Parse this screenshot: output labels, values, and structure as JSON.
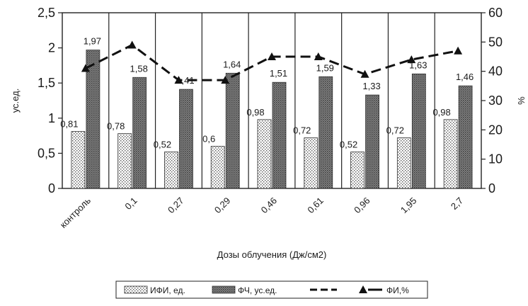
{
  "chart_data": {
    "type": "bar",
    "categories": [
      "контроль",
      "0,1",
      "0,27",
      "0,29",
      "0,46",
      "0,61",
      "0,96",
      "1,95",
      "2,7"
    ],
    "series": [
      {
        "name": "ИФИ, ед.",
        "type": "bar",
        "axis": "left",
        "pattern": "dotted",
        "values": [
          0.81,
          0.78,
          0.52,
          0.6,
          0.98,
          0.72,
          0.52,
          0.72,
          0.98
        ],
        "labels": [
          "0,81",
          "0,78",
          "0,52",
          "0,6",
          "0,98",
          "0,72",
          "0,52",
          "0,72",
          "0,98"
        ]
      },
      {
        "name": "ФЧ, ус.ед.",
        "type": "bar",
        "axis": "left",
        "pattern": "dark-hatched",
        "values": [
          1.97,
          1.58,
          1.41,
          1.64,
          1.51,
          1.59,
          1.33,
          1.63,
          1.46
        ],
        "labels": [
          "1,97",
          "1,58",
          "1,41",
          "1,64",
          "1,51",
          "1,59",
          "1,33",
          "1,63",
          "1,46"
        ]
      },
      {
        "name": "ФИ,%",
        "type": "line",
        "axis": "right",
        "line_style": "dashed",
        "marker": "triangle",
        "values": [
          41,
          49,
          37,
          37,
          45,
          45,
          39,
          44,
          47
        ]
      }
    ],
    "xlabel": "Дозы облучения (Дж/см2)",
    "ylabel": "ус.ед.",
    "y2label": "%",
    "ylim": [
      0,
      2.5
    ],
    "y2lim": [
      0,
      60
    ],
    "yticks": [
      "0",
      "0,5",
      "1",
      "1,5",
      "2",
      "2,5"
    ],
    "y2ticks": [
      "0",
      "10",
      "20",
      "30",
      "40",
      "50",
      "60"
    ],
    "grid": "vertical",
    "legend_position": "bottom"
  }
}
